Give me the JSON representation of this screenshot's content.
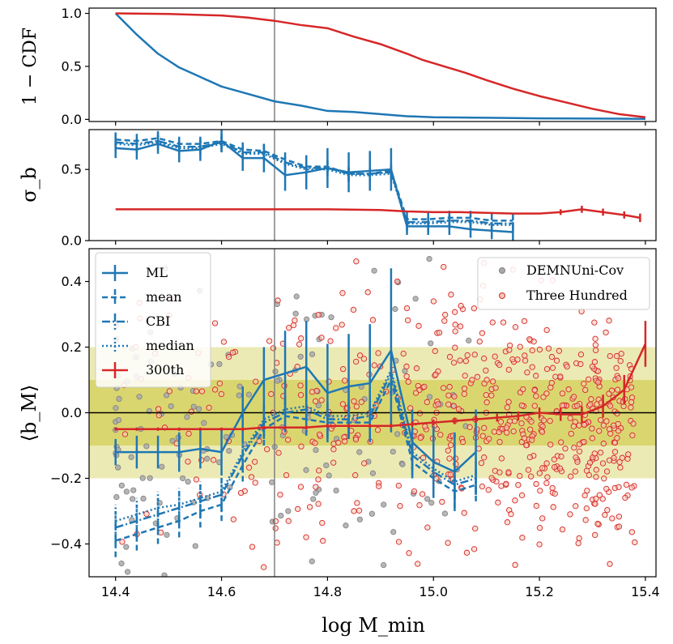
{
  "chart_data": [
    {
      "type": "line",
      "panel": "top",
      "ylabel": "1 − CDF",
      "ylim": [
        -0.02,
        1.05
      ],
      "xlim": [
        14.35,
        15.42
      ],
      "yticks": [
        0.0,
        0.5,
        1.0
      ],
      "ytick_labels": [
        "0.0",
        "0.5",
        "1.0"
      ],
      "vline_x": 14.7,
      "series": [
        {
          "name": "DEMNUni-Cov",
          "color": "#1f77b4",
          "x": [
            14.4,
            14.44,
            14.48,
            14.52,
            14.56,
            14.6,
            14.65,
            14.7,
            14.75,
            14.8,
            14.85,
            14.9,
            14.95,
            15.0,
            15.1,
            15.2,
            15.3,
            15.4
          ],
          "y": [
            1.0,
            0.8,
            0.62,
            0.49,
            0.4,
            0.31,
            0.24,
            0.17,
            0.13,
            0.08,
            0.07,
            0.05,
            0.03,
            0.02,
            0.015,
            0.01,
            0.008,
            0.005
          ]
        },
        {
          "name": "Three Hundred",
          "color": "#d62728",
          "x": [
            14.4,
            14.5,
            14.6,
            14.65,
            14.7,
            14.75,
            14.8,
            14.85,
            14.9,
            14.95,
            14.98,
            15.02,
            15.06,
            15.1,
            15.15,
            15.2,
            15.25,
            15.3,
            15.35,
            15.4
          ],
          "y": [
            1.0,
            0.995,
            0.98,
            0.96,
            0.93,
            0.89,
            0.86,
            0.78,
            0.71,
            0.62,
            0.56,
            0.5,
            0.44,
            0.37,
            0.29,
            0.22,
            0.16,
            0.1,
            0.05,
            0.02
          ]
        }
      ]
    },
    {
      "type": "line",
      "panel": "middle",
      "ylabel": "σ_b",
      "ylim": [
        0.0,
        0.78
      ],
      "xlim": [
        14.35,
        15.42
      ],
      "yticks": [
        0.0,
        0.5
      ],
      "ytick_labels": [
        "0.0",
        "0.5"
      ],
      "vline_x": 14.7,
      "series": [
        {
          "name": "ML",
          "color": "#1f77b4",
          "style": "solid",
          "x": [
            14.4,
            14.44,
            14.48,
            14.52,
            14.56,
            14.6,
            14.64,
            14.68,
            14.72,
            14.76,
            14.8,
            14.84,
            14.88,
            14.92,
            14.95,
            14.99,
            15.03,
            15.07,
            15.11,
            15.15
          ],
          "y": [
            0.65,
            0.64,
            0.68,
            0.63,
            0.64,
            0.7,
            0.58,
            0.58,
            0.46,
            0.48,
            0.51,
            0.48,
            0.49,
            0.5,
            0.1,
            0.1,
            0.1,
            0.08,
            0.07,
            0.06
          ],
          "err": [
            0.07,
            0.07,
            0.07,
            0.08,
            0.08,
            0.08,
            0.09,
            0.1,
            0.11,
            0.12,
            0.14,
            0.14,
            0.14,
            0.15,
            0.06,
            0.06,
            0.06,
            0.06,
            0.06,
            0.06
          ]
        },
        {
          "name": "mean",
          "color": "#1f77b4",
          "style": "dashed",
          "x": [
            14.4,
            14.44,
            14.48,
            14.52,
            14.56,
            14.6,
            14.64,
            14.68,
            14.72,
            14.76,
            14.8,
            14.84,
            14.88,
            14.92,
            14.95,
            14.99,
            15.03,
            15.07,
            15.11,
            15.15
          ],
          "y": [
            0.71,
            0.7,
            0.72,
            0.68,
            0.68,
            0.7,
            0.64,
            0.63,
            0.57,
            0.52,
            0.52,
            0.47,
            0.47,
            0.49,
            0.15,
            0.15,
            0.16,
            0.16,
            0.14,
            0.14
          ],
          "err": [
            0.05,
            0.05,
            0.05,
            0.05,
            0.05,
            0.05,
            0.05,
            0.05,
            0.05,
            0.05,
            0.05,
            0.05,
            0.05,
            0.05,
            0.05,
            0.05,
            0.05,
            0.05,
            0.05,
            0.05
          ]
        },
        {
          "name": "CBI",
          "color": "#1f77b4",
          "style": "dashdot",
          "x": [
            14.4,
            14.44,
            14.48,
            14.52,
            14.56,
            14.6,
            14.64,
            14.68,
            14.72,
            14.76,
            14.8,
            14.84,
            14.88,
            14.92,
            14.95,
            14.99,
            15.03,
            15.07,
            15.11,
            15.15
          ],
          "y": [
            0.69,
            0.68,
            0.7,
            0.66,
            0.66,
            0.69,
            0.62,
            0.62,
            0.55,
            0.51,
            0.51,
            0.47,
            0.47,
            0.48,
            0.13,
            0.13,
            0.14,
            0.14,
            0.12,
            0.12
          ],
          "err": [
            0.05,
            0.05,
            0.05,
            0.05,
            0.05,
            0.05,
            0.05,
            0.05,
            0.05,
            0.05,
            0.05,
            0.05,
            0.05,
            0.05,
            0.05,
            0.05,
            0.05,
            0.05,
            0.05,
            0.05
          ]
        },
        {
          "name": "median",
          "color": "#1f77b4",
          "style": "dotted",
          "x": [
            14.4,
            14.44,
            14.48,
            14.52,
            14.56,
            14.6,
            14.64,
            14.68,
            14.72,
            14.76,
            14.8,
            14.84,
            14.88,
            14.92,
            14.95,
            14.99,
            15.03,
            15.07,
            15.11,
            15.15
          ],
          "y": [
            0.68,
            0.67,
            0.69,
            0.65,
            0.65,
            0.68,
            0.61,
            0.61,
            0.54,
            0.5,
            0.5,
            0.46,
            0.46,
            0.47,
            0.12,
            0.12,
            0.13,
            0.13,
            0.11,
            0.11
          ],
          "err": [
            0.05,
            0.05,
            0.05,
            0.05,
            0.05,
            0.05,
            0.05,
            0.05,
            0.05,
            0.05,
            0.05,
            0.05,
            0.05,
            0.05,
            0.05,
            0.05,
            0.05,
            0.05,
            0.05,
            0.05
          ]
        },
        {
          "name": "300th",
          "color": "#d62728",
          "style": "solid",
          "x": [
            14.4,
            14.5,
            14.6,
            14.7,
            14.8,
            14.9,
            14.95,
            15.0,
            15.05,
            15.1,
            15.15,
            15.2,
            15.24,
            15.28,
            15.32,
            15.36,
            15.39
          ],
          "y": [
            0.22,
            0.22,
            0.22,
            0.22,
            0.22,
            0.215,
            0.205,
            0.2,
            0.2,
            0.195,
            0.19,
            0.19,
            0.2,
            0.22,
            0.2,
            0.18,
            0.16
          ],
          "err": [
            0,
            0,
            0,
            0,
            0,
            0,
            0,
            0,
            0,
            0,
            0,
            0,
            0.02,
            0.025,
            0.025,
            0.025,
            0.03
          ]
        }
      ]
    },
    {
      "type": "line",
      "panel": "bottom",
      "ylabel": "⟨b_M⟩",
      "xlabel": "log M_min",
      "ylim": [
        -0.5,
        0.5
      ],
      "xlim": [
        14.35,
        15.42
      ],
      "yticks": [
        -0.4,
        -0.2,
        0.0,
        0.2,
        0.4
      ],
      "ytick_labels": [
        "−0.4",
        "−0.2",
        "0.0",
        "0.2",
        "0.4"
      ],
      "xticks": [
        14.4,
        14.6,
        14.8,
        15.0,
        15.2,
        15.4
      ],
      "xtick_labels": [
        "14.4",
        "14.6",
        "14.8",
        "15.0",
        "15.2",
        "15.4"
      ],
      "vline_x": 14.7,
      "hline_y": 0.0,
      "bands": [
        {
          "ymin": -0.2,
          "ymax": 0.2,
          "color": "#e6e39b"
        },
        {
          "ymin": -0.1,
          "ymax": 0.1,
          "color": "#d4cf58"
        }
      ],
      "series": [
        {
          "name": "ML",
          "color": "#1f77b4",
          "style": "solid",
          "x": [
            14.4,
            14.44,
            14.48,
            14.52,
            14.56,
            14.6,
            14.64,
            14.68,
            14.72,
            14.76,
            14.8,
            14.84,
            14.88,
            14.92,
            14.96,
            15.0,
            15.04,
            15.08
          ],
          "y": [
            -0.12,
            -0.12,
            -0.12,
            -0.12,
            -0.11,
            -0.12,
            0.0,
            0.1,
            0.12,
            0.14,
            0.06,
            0.08,
            0.09,
            0.19,
            -0.09,
            -0.15,
            -0.18,
            -0.12
          ],
          "err": [
            0.04,
            0.05,
            0.05,
            0.06,
            0.06,
            0.07,
            0.08,
            0.1,
            0.13,
            0.14,
            0.15,
            0.16,
            0.18,
            0.25,
            0.1,
            0.11,
            0.12,
            0.13
          ]
        },
        {
          "name": "mean",
          "color": "#1f77b4",
          "style": "dashed",
          "x": [
            14.4,
            14.44,
            14.48,
            14.52,
            14.56,
            14.6,
            14.64,
            14.68,
            14.72,
            14.76,
            14.8,
            14.84,
            14.88,
            14.92,
            14.96,
            15.0,
            15.04,
            15.08
          ],
          "y": [
            -0.39,
            -0.37,
            -0.35,
            -0.33,
            -0.3,
            -0.28,
            -0.16,
            -0.05,
            -0.01,
            -0.02,
            -0.03,
            -0.03,
            -0.03,
            0.1,
            -0.15,
            -0.2,
            -0.24,
            -0.22
          ],
          "err": [
            0.05,
            0.05,
            0.05,
            0.05,
            0.05,
            0.05,
            0.05,
            0.05,
            0.05,
            0.05,
            0.05,
            0.05,
            0.05,
            0.05,
            0.05,
            0.05,
            0.05,
            0.05
          ]
        },
        {
          "name": "CBI",
          "color": "#1f77b4",
          "style": "dashdot",
          "x": [
            14.4,
            14.44,
            14.48,
            14.52,
            14.56,
            14.6,
            14.64,
            14.68,
            14.72,
            14.76,
            14.8,
            14.84,
            14.88,
            14.92,
            14.96,
            15.0,
            15.04,
            15.08
          ],
          "y": [
            -0.35,
            -0.33,
            -0.31,
            -0.29,
            -0.27,
            -0.25,
            -0.13,
            -0.03,
            0.0,
            0.01,
            -0.02,
            -0.02,
            -0.01,
            0.12,
            -0.13,
            -0.18,
            -0.22,
            -0.2
          ],
          "err": [
            0.05,
            0.05,
            0.05,
            0.05,
            0.05,
            0.05,
            0.05,
            0.05,
            0.05,
            0.05,
            0.05,
            0.05,
            0.05,
            0.05,
            0.05,
            0.05,
            0.05,
            0.05
          ]
        },
        {
          "name": "median",
          "color": "#1f77b4",
          "style": "dotted",
          "x": [
            14.4,
            14.44,
            14.48,
            14.52,
            14.56,
            14.6,
            14.64,
            14.68,
            14.72,
            14.76,
            14.8,
            14.84,
            14.88,
            14.92,
            14.96,
            15.0,
            15.04,
            15.08
          ],
          "y": [
            -0.33,
            -0.31,
            -0.29,
            -0.28,
            -0.26,
            -0.24,
            -0.12,
            -0.02,
            0.01,
            0.02,
            -0.01,
            -0.01,
            0.0,
            0.13,
            -0.12,
            -0.17,
            -0.21,
            -0.19
          ],
          "err": [
            0.05,
            0.05,
            0.05,
            0.05,
            0.05,
            0.05,
            0.05,
            0.05,
            0.05,
            0.05,
            0.05,
            0.05,
            0.05,
            0.05,
            0.05,
            0.05,
            0.05,
            0.05
          ]
        },
        {
          "name": "300th",
          "color": "#d62728",
          "style": "solid",
          "x": [
            14.4,
            14.44,
            14.48,
            14.52,
            14.56,
            14.6,
            14.64,
            14.68,
            14.72,
            14.76,
            14.8,
            14.84,
            14.88,
            14.92,
            14.96,
            15.0,
            15.04,
            15.08,
            15.12,
            15.16,
            15.2,
            15.24,
            15.28,
            15.32,
            15.36,
            15.4
          ],
          "y": [
            -0.05,
            -0.05,
            -0.05,
            -0.05,
            -0.05,
            -0.05,
            -0.05,
            -0.045,
            -0.045,
            -0.045,
            -0.04,
            -0.04,
            -0.04,
            -0.04,
            -0.035,
            -0.03,
            -0.025,
            -0.02,
            -0.015,
            -0.01,
            0.0,
            -0.005,
            -0.005,
            0.02,
            0.07,
            0.21
          ],
          "err": [
            0.005,
            0.005,
            0.005,
            0.005,
            0.005,
            0.005,
            0.005,
            0.005,
            0.005,
            0.006,
            0.006,
            0.006,
            0.006,
            0.007,
            0.008,
            0.009,
            0.01,
            0.011,
            0.012,
            0.014,
            0.016,
            0.02,
            0.025,
            0.035,
            0.045,
            0.07
          ]
        }
      ],
      "scatter": [
        {
          "name": "DEMNUni-Cov",
          "facecolor": "#a9a9a9",
          "edgecolor": "#7f7f7f",
          "x_range": [
            14.4,
            15.08
          ],
          "density": "heavier at low mass"
        },
        {
          "name": "Three Hundred",
          "facecolor": "#f7c9b5",
          "edgecolor": "#d62728",
          "x_range": [
            14.4,
            15.4
          ],
          "density": "heavier at mid-high mass"
        }
      ],
      "legend_left": [
        "ML",
        "mean",
        "CBI",
        "median",
        "300th"
      ],
      "legend_right": [
        "DEMNUni-Cov",
        "Three Hundred"
      ]
    }
  ]
}
